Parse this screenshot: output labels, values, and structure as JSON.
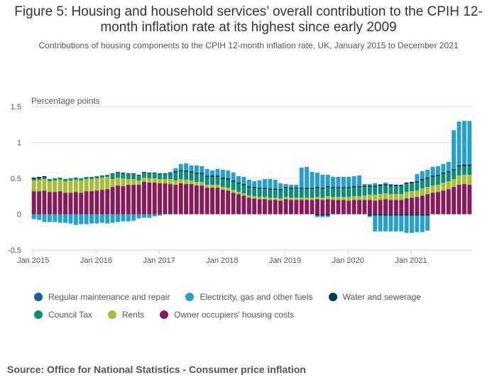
{
  "title": "Figure 5: Housing and household services’ overall contribution to the CPIH 12-month inflation rate at its highest since early 2009",
  "subtitle": "Contributions of housing components to the CPIH 12-month inflation rate, UK, January 2015 to December 2021",
  "source": "Source: Office for National Statistics - Consumer price inflation",
  "chart_data": {
    "type": "bar",
    "stacked": true,
    "title": "Figure 5: Housing and household services’ overall contribution to the CPIH 12-month inflation rate at its highest since early 2009",
    "subtitle": "Contributions of housing components to the CPIH 12-month inflation rate, UK, January 2015 to December 2021",
    "ylabel": "Percentage points",
    "xlabel": "",
    "ylim": [
      -0.5,
      1.5
    ],
    "yticks": [
      -0.5,
      0,
      0.5,
      1,
      1.5
    ],
    "ytick_labels": [
      "-0.5",
      "0",
      "0.5",
      "1",
      "1.5"
    ],
    "xtick_labels": [
      "Jan 2015",
      "Jan 2016",
      "Jan 2017",
      "Jan 2018",
      "Jan 2019",
      "Jan 2020",
      "Jan 2021"
    ],
    "xtick_indices": [
      0,
      12,
      24,
      36,
      48,
      60,
      72
    ],
    "grid": "horizontal",
    "legend_position": "bottom",
    "start": "2015-01",
    "periods": 84,
    "series": [
      {
        "name": "Owner occupiers' housing costs",
        "color": "#871A5B",
        "values": [
          0.32,
          0.32,
          0.33,
          0.31,
          0.31,
          0.32,
          0.3,
          0.3,
          0.31,
          0.3,
          0.32,
          0.32,
          0.33,
          0.34,
          0.35,
          0.38,
          0.4,
          0.39,
          0.41,
          0.41,
          0.41,
          0.45,
          0.44,
          0.44,
          0.43,
          0.43,
          0.42,
          0.41,
          0.43,
          0.42,
          0.42,
          0.4,
          0.4,
          0.37,
          0.37,
          0.37,
          0.34,
          0.33,
          0.3,
          0.28,
          0.26,
          0.23,
          0.22,
          0.21,
          0.21,
          0.2,
          0.2,
          0.19,
          0.21,
          0.2,
          0.2,
          0.2,
          0.2,
          0.2,
          0.21,
          0.2,
          0.21,
          0.2,
          0.2,
          0.2,
          0.19,
          0.2,
          0.2,
          0.2,
          0.2,
          0.19,
          0.2,
          0.21,
          0.2,
          0.2,
          0.2,
          0.22,
          0.23,
          0.24,
          0.26,
          0.28,
          0.3,
          0.31,
          0.33,
          0.35,
          0.38,
          0.41,
          0.42,
          0.41
        ]
      },
      {
        "name": "Rents",
        "color": "#A8BD3A",
        "values": [
          0.15,
          0.16,
          0.16,
          0.15,
          0.16,
          0.16,
          0.16,
          0.17,
          0.17,
          0.17,
          0.17,
          0.17,
          0.17,
          0.17,
          0.17,
          0.11,
          0.11,
          0.11,
          0.08,
          0.08,
          0.06,
          0.06,
          0.06,
          0.06,
          0.06,
          0.06,
          0.07,
          0.06,
          0.06,
          0.06,
          0.05,
          0.05,
          0.05,
          0.04,
          0.04,
          0.04,
          0.04,
          0.04,
          0.04,
          0.03,
          0.03,
          0.03,
          0.03,
          0.03,
          0.03,
          0.03,
          0.03,
          0.03,
          0.03,
          0.03,
          0.03,
          0.03,
          0.03,
          0.03,
          0.03,
          0.03,
          0.04,
          0.04,
          0.04,
          0.04,
          0.05,
          0.05,
          0.05,
          0.06,
          0.07,
          0.08,
          0.08,
          0.08,
          0.08,
          0.08,
          0.08,
          0.09,
          0.09,
          0.09,
          0.1,
          0.1,
          0.1,
          0.1,
          0.11,
          0.11,
          0.11,
          0.13,
          0.13,
          0.14
        ]
      },
      {
        "name": "Council Tax",
        "color": "#118C7B",
        "values": [
          0.02,
          0.02,
          0.02,
          0.03,
          0.03,
          0.03,
          0.03,
          0.03,
          0.03,
          0.03,
          0.03,
          0.03,
          0.03,
          0.03,
          0.03,
          0.07,
          0.07,
          0.07,
          0.07,
          0.07,
          0.07,
          0.07,
          0.07,
          0.07,
          0.07,
          0.07,
          0.07,
          0.11,
          0.11,
          0.11,
          0.11,
          0.11,
          0.11,
          0.11,
          0.11,
          0.11,
          0.11,
          0.11,
          0.11,
          0.11,
          0.11,
          0.11,
          0.11,
          0.11,
          0.11,
          0.11,
          0.11,
          0.11,
          0.12,
          0.12,
          0.12,
          0.12,
          0.12,
          0.12,
          0.12,
          0.12,
          0.12,
          0.12,
          0.12,
          0.12,
          0.12,
          0.12,
          0.12,
          0.12,
          0.11,
          0.11,
          0.11,
          0.11,
          0.11,
          0.11,
          0.11,
          0.11,
          0.11,
          0.11,
          0.11,
          0.11,
          0.12,
          0.12,
          0.12,
          0.12,
          0.12,
          0.12,
          0.12,
          0.12
        ]
      },
      {
        "name": "Water and sewerage",
        "color": "#003C57",
        "values": [
          0.02,
          0.02,
          0.02,
          0.0,
          0.0,
          0.0,
          0.0,
          0.0,
          0.0,
          0.0,
          0.0,
          0.0,
          0.0,
          0.0,
          0.0,
          0.01,
          0.01,
          0.01,
          0.01,
          0.01,
          0.01,
          0.01,
          0.01,
          0.01,
          0.01,
          0.01,
          0.01,
          0.02,
          0.02,
          0.02,
          0.02,
          0.02,
          0.02,
          0.02,
          0.02,
          0.02,
          0.02,
          0.02,
          0.02,
          0.02,
          0.02,
          0.02,
          0.02,
          0.02,
          0.02,
          0.02,
          0.02,
          0.02,
          0.02,
          0.02,
          0.02,
          0.02,
          0.02,
          0.02,
          0.02,
          0.02,
          0.02,
          0.02,
          0.02,
          0.02,
          0.02,
          0.02,
          0.02,
          0.02,
          0.02,
          0.02,
          0.02,
          0.02,
          0.02,
          0.02,
          0.02,
          0.02,
          0.02,
          0.02,
          0.02,
          0.02,
          0.02,
          0.02,
          0.02,
          0.02,
          0.02,
          0.02,
          0.02,
          0.02
        ]
      },
      {
        "name": "Regular maintenance and repair",
        "color": "#206095",
        "values": [
          0.0,
          0.0,
          0.0,
          0.0,
          0.0,
          0.0,
          0.0,
          0.0,
          0.0,
          0.0,
          0.0,
          0.0,
          0.0,
          0.0,
          0.0,
          0.0,
          0.0,
          0.0,
          0.0,
          0.0,
          0.0,
          0.0,
          0.0,
          0.0,
          0.0,
          0.0,
          0.0,
          0.0,
          0.0,
          0.0,
          0.0,
          0.0,
          0.0,
          0.0,
          0.0,
          0.0,
          0.0,
          0.0,
          0.0,
          0.0,
          0.0,
          0.0,
          0.0,
          0.0,
          0.0,
          0.0,
          0.0,
          0.0,
          0.0,
          0.0,
          0.0,
          0.0,
          0.0,
          0.0,
          0.0,
          0.0,
          0.0,
          0.0,
          0.0,
          0.0,
          0.0,
          0.0,
          0.0,
          0.0,
          0.0,
          0.0,
          0.0,
          0.0,
          0.0,
          0.0,
          0.0,
          0.0,
          0.0,
          0.0,
          0.0,
          0.0,
          0.0,
          0.0,
          0.0,
          0.0,
          0.0,
          0.01,
          0.01,
          0.01
        ]
      },
      {
        "name": "Electricity, gas and other fuels",
        "color": "#27A0CC",
        "values": [
          -0.07,
          -0.08,
          -0.11,
          -0.11,
          -0.11,
          -0.12,
          -0.12,
          -0.13,
          -0.15,
          -0.14,
          -0.14,
          -0.13,
          -0.13,
          -0.12,
          -0.13,
          -0.12,
          -0.11,
          -0.1,
          -0.1,
          -0.09,
          -0.06,
          -0.05,
          -0.05,
          -0.03,
          -0.02,
          0.0,
          0.02,
          0.04,
          0.08,
          0.1,
          0.08,
          0.1,
          0.09,
          0.09,
          0.07,
          0.09,
          0.11,
          0.11,
          0.11,
          0.09,
          0.1,
          0.09,
          0.08,
          0.1,
          0.12,
          0.13,
          0.12,
          0.08,
          0.04,
          0.04,
          0.04,
          0.28,
          0.29,
          0.22,
          0.2,
          0.18,
          0.16,
          0.14,
          0.14,
          0.14,
          0.14,
          0.14,
          0.15,
          0.02,
          0.02,
          0.03,
          0.01,
          0.02,
          0.01,
          0.0,
          0.0,
          0.0,
          0.0,
          0.1,
          0.11,
          0.11,
          0.12,
          0.12,
          0.12,
          0.13,
          0.54,
          0.6,
          0.6,
          0.6
        ]
      },
      {
        "name": "Electricity, gas and other fuels (negative)",
        "legend": false,
        "color": "#27A0CC",
        "values": []
      }
    ]
  },
  "legend": {
    "rows": [
      [
        {
          "label": "Regular maintenance and repair",
          "color": "#206095"
        },
        {
          "label": "Electricity, gas and other fuels",
          "color": "#27A0CC"
        },
        {
          "label": "Water and sewerage",
          "color": "#003C57"
        }
      ],
      [
        {
          "label": "Council Tax",
          "color": "#118C7B"
        },
        {
          "label": "Rents",
          "color": "#A8BD3A"
        },
        {
          "label": "Owner occupiers' housing costs",
          "color": "#871A5B"
        }
      ]
    ]
  },
  "negative_fuels": [
    0,
    0,
    0,
    0,
    0,
    0,
    0,
    0,
    0,
    0,
    0,
    0,
    0,
    0,
    0,
    0,
    0,
    0,
    0,
    0,
    0,
    0,
    0,
    0,
    0,
    0,
    0,
    0,
    0,
    0,
    0,
    0,
    0,
    0,
    0,
    0,
    0,
    0,
    0,
    0,
    0,
    0,
    0,
    0,
    0,
    0,
    0,
    0,
    0,
    0,
    0,
    0,
    0,
    0,
    -0.02,
    -0.02,
    -0.02,
    0,
    0,
    0,
    0,
    0,
    0,
    0,
    -0.02,
    -0.22,
    -0.22,
    -0.22,
    -0.22,
    -0.22,
    -0.22,
    -0.24,
    -0.24,
    -0.23,
    -0.23,
    -0.21,
    0,
    0,
    0,
    0,
    0,
    0,
    0,
    0,
    0,
    0
  ]
}
